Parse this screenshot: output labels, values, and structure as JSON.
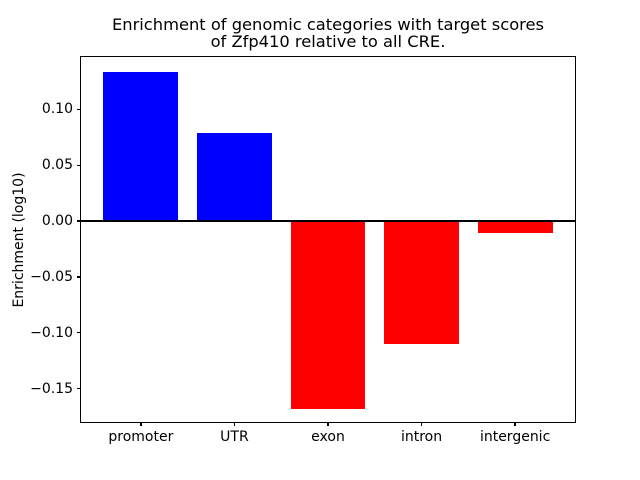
{
  "figure": {
    "title_line1": "Enrichment of genomic categories with target scores",
    "title_line2": "of Zfp410 relative to all CRE.",
    "ylabel": "Enrichment (log10)",
    "background_color": "#ffffff",
    "axis_color": "#000000"
  },
  "chart_data": {
    "type": "bar",
    "title": "Enrichment of genomic categories with target scores of Zfp410 relative to all CRE.",
    "xlabel": "",
    "ylabel": "Enrichment (log10)",
    "categories": [
      "promoter",
      "UTR",
      "exon",
      "intron",
      "intergenic"
    ],
    "values": [
      0.134,
      0.079,
      -0.168,
      -0.11,
      -0.011
    ],
    "bar_colors": [
      "#0000ff",
      "#0000ff",
      "#ff0000",
      "#ff0000",
      "#ff0000"
    ],
    "positive_color": "#0000ff",
    "negative_color": "#ff0000",
    "ylim": [
      -0.18,
      0.147
    ],
    "xlim": [
      -0.64,
      4.64
    ],
    "bar_width": 0.8,
    "yticks": [
      0.1,
      0.05,
      0.0,
      -0.05,
      -0.1,
      -0.15
    ],
    "ytick_labels": [
      "0.10",
      "0.05",
      "0.00",
      "−0.05",
      "−0.10",
      "−0.15"
    ],
    "zero_line": true,
    "zero_line_color": "#000000",
    "grid": false,
    "legend": false
  }
}
